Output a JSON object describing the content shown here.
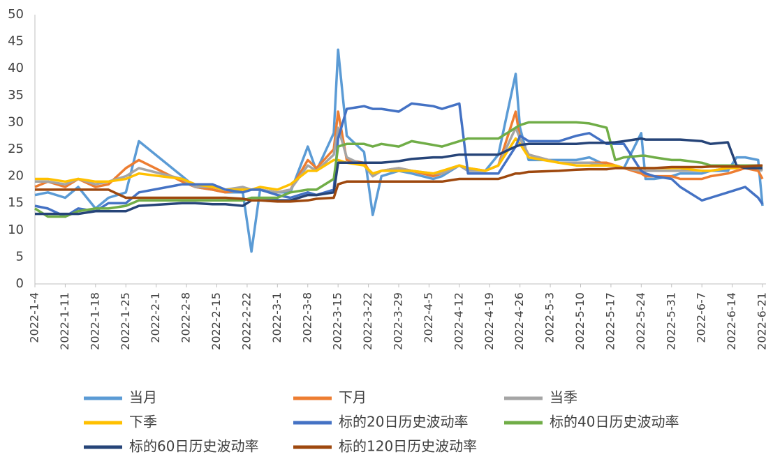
{
  "chart_data": {
    "type": "line",
    "x": [
      "2022-1-4",
      "2022-1-7",
      "2022-1-11",
      "2022-1-14",
      "2022-1-18",
      "2022-1-21",
      "2022-1-25",
      "2022-1-28",
      "2022-2-7",
      "2022-2-10",
      "2022-2-14",
      "2022-2-17",
      "2022-2-21",
      "2022-2-23",
      "2022-2-25",
      "2022-3-1",
      "2022-3-4",
      "2022-3-8",
      "2022-3-10",
      "2022-3-14",
      "2022-3-15",
      "2022-3-17",
      "2022-3-21",
      "2022-3-23",
      "2022-3-25",
      "2022-3-29",
      "2022-4-1",
      "2022-4-6",
      "2022-4-8",
      "2022-4-12",
      "2022-4-14",
      "2022-4-18",
      "2022-4-21",
      "2022-4-25",
      "2022-4-26",
      "2022-4-28",
      "2022-5-5",
      "2022-5-9",
      "2022-5-12",
      "2022-5-16",
      "2022-5-18",
      "2022-5-20",
      "2022-5-24",
      "2022-5-25",
      "2022-5-27",
      "2022-5-31",
      "2022-6-2",
      "2022-6-7",
      "2022-6-9",
      "2022-6-13",
      "2022-6-15",
      "2022-6-17",
      "2022-6-20",
      "2022-6-21"
    ],
    "xlim": [
      "2022-1-4",
      "2022-6-21"
    ],
    "xticks": [
      "2022-1-4",
      "2022-1-11",
      "2022-1-18",
      "2022-1-25",
      "2022-2-1",
      "2022-2-8",
      "2022-2-15",
      "2022-2-22",
      "2022-3-1",
      "2022-3-8",
      "2022-3-15",
      "2022-3-22",
      "2022-3-29",
      "2022-4-5",
      "2022-4-12",
      "2022-4-19",
      "2022-4-26",
      "2022-5-3",
      "2022-5-10",
      "2022-5-17",
      "2022-5-24",
      "2022-5-31",
      "2022-6-7",
      "2022-6-14",
      "2022-6-21"
    ],
    "ylim": [
      0,
      50
    ],
    "yticks": [
      0,
      5,
      10,
      15,
      20,
      25,
      30,
      35,
      40,
      45,
      50
    ],
    "grid": false,
    "legend": "bottom",
    "series": [
      {
        "name": "当月",
        "color": "#5b9bd5",
        "values": [
          16.5,
          17,
          16,
          18,
          14,
          16,
          17,
          26.5,
          20,
          18,
          17.5,
          17,
          17,
          6,
          17.5,
          17,
          17,
          25.5,
          21,
          28,
          43.5,
          27.5,
          24.5,
          12.8,
          20,
          21,
          20.5,
          19.5,
          20,
          22,
          21,
          21,
          24,
          39,
          29,
          23,
          23,
          23,
          23.5,
          22,
          22,
          21.5,
          28,
          19.5,
          19.5,
          20,
          20.5,
          20.5,
          21,
          21,
          23.5,
          23.5,
          23,
          14.5
        ]
      },
      {
        "name": "下月",
        "color": "#ed7d31",
        "values": [
          18,
          19,
          18,
          19.5,
          18,
          18.5,
          21.5,
          23,
          19,
          18,
          17.5,
          17,
          17.5,
          17.5,
          17.5,
          17,
          17.5,
          23,
          21.5,
          25,
          32,
          23,
          22.5,
          20,
          21,
          21.5,
          21,
          20,
          20.5,
          22,
          21.5,
          21,
          22,
          32,
          27,
          24,
          22.5,
          22.5,
          22.5,
          22.5,
          22,
          21.5,
          20.5,
          20,
          20,
          20,
          19.5,
          19.5,
          20,
          20.5,
          21,
          21.5,
          21,
          19.5
        ]
      },
      {
        "name": "当季",
        "color": "#a5a5a5",
        "values": [
          19,
          19,
          18.5,
          19.5,
          18.5,
          19,
          20,
          21.5,
          19.5,
          18,
          18,
          17.5,
          18,
          17.5,
          17.5,
          17,
          17.5,
          22,
          21,
          24,
          29,
          23.5,
          22,
          20,
          21,
          21.5,
          21,
          20.5,
          20.5,
          22,
          21,
          21,
          22,
          29,
          27,
          24,
          22.5,
          22.5,
          22.5,
          22,
          22,
          21.5,
          21,
          21,
          21,
          21,
          21,
          21,
          21,
          21.5,
          21.5,
          22,
          21.5,
          21
        ]
      },
      {
        "name": "下季",
        "color": "#ffc000",
        "values": [
          19.5,
          19.5,
          19,
          19.5,
          19,
          19,
          19.5,
          20.5,
          19.5,
          18.5,
          18,
          17.5,
          17.5,
          17.5,
          18,
          17.5,
          18.5,
          21,
          21,
          23,
          23,
          22.5,
          22,
          20.5,
          21,
          21,
          21,
          20.5,
          21,
          22,
          21.5,
          21,
          22,
          27,
          26,
          23.5,
          22.5,
          22,
          22,
          22,
          22,
          21.5,
          21.5,
          21.5,
          21.5,
          21.5,
          21.5,
          21,
          21,
          21.5,
          21.5,
          22,
          21.5,
          21.5
        ]
      },
      {
        "name": "标的20日历史波动率",
        "color": "#4472c4",
        "values": [
          14.5,
          14,
          12.5,
          14,
          13.5,
          15,
          15,
          17,
          18.5,
          18.5,
          18.5,
          17.5,
          17,
          17.5,
          17.5,
          16.5,
          16,
          17,
          16.5,
          17.5,
          27,
          32.5,
          33,
          32.5,
          32.5,
          32,
          33.5,
          33,
          32.5,
          33.5,
          20.5,
          20.5,
          20.5,
          25.5,
          27.5,
          26.5,
          26.5,
          27.5,
          28,
          26,
          26,
          26,
          21,
          20.5,
          20,
          19.5,
          18,
          15.5,
          16,
          17,
          17.5,
          18,
          16,
          14.8
        ]
      },
      {
        "name": "标的40日历史波动率",
        "color": "#70ad47",
        "values": [
          14,
          12.5,
          12.5,
          13.5,
          14,
          14,
          14.5,
          15.5,
          15.5,
          15.5,
          15.5,
          15.5,
          15.5,
          16,
          16,
          16,
          17,
          17.5,
          17.5,
          19.5,
          25.5,
          26,
          26,
          25.5,
          26,
          25.5,
          26.5,
          25.8,
          25.5,
          26.5,
          27,
          27,
          27,
          29,
          29.5,
          30,
          30,
          30,
          29.8,
          29,
          23,
          23.5,
          23.8,
          23.8,
          23.5,
          23,
          23,
          22.5,
          22,
          22,
          22,
          22,
          22,
          21.8
        ]
      },
      {
        "name": "标的60日历史波动率",
        "color": "#264478",
        "values": [
          13,
          13,
          13,
          13,
          13.5,
          13.5,
          13.5,
          14.5,
          15,
          15,
          14.8,
          14.8,
          14.5,
          15.5,
          15.5,
          15.5,
          15.5,
          16.5,
          16.5,
          17,
          22.5,
          22.5,
          22.5,
          22.5,
          22.5,
          22.8,
          23.2,
          23.5,
          23.5,
          24,
          24,
          24,
          24,
          25.5,
          25.8,
          26,
          26,
          26,
          26.2,
          26.2,
          26.3,
          26.5,
          27,
          26.8,
          26.8,
          26.8,
          26.8,
          26.5,
          26,
          26.3,
          22,
          21.5,
          21.5,
          21.5
        ]
      },
      {
        "name": "标的120日历史波动率",
        "color": "#9e480e",
        "values": [
          17.5,
          17.5,
          17.5,
          17.5,
          17.5,
          17.5,
          16,
          16,
          16,
          16,
          16,
          16,
          15.8,
          15.5,
          15.5,
          15.3,
          15.3,
          15.5,
          15.8,
          16,
          18.5,
          19,
          19,
          19,
          19,
          19,
          19,
          19,
          19,
          19.5,
          19.5,
          19.5,
          19.5,
          20.5,
          20.5,
          20.8,
          21,
          21.2,
          21.3,
          21.3,
          21.5,
          21.5,
          21.5,
          21.5,
          21.5,
          21.7,
          21.7,
          21.7,
          21.8,
          21.8,
          21.8,
          21.8,
          22,
          22
        ]
      }
    ]
  }
}
